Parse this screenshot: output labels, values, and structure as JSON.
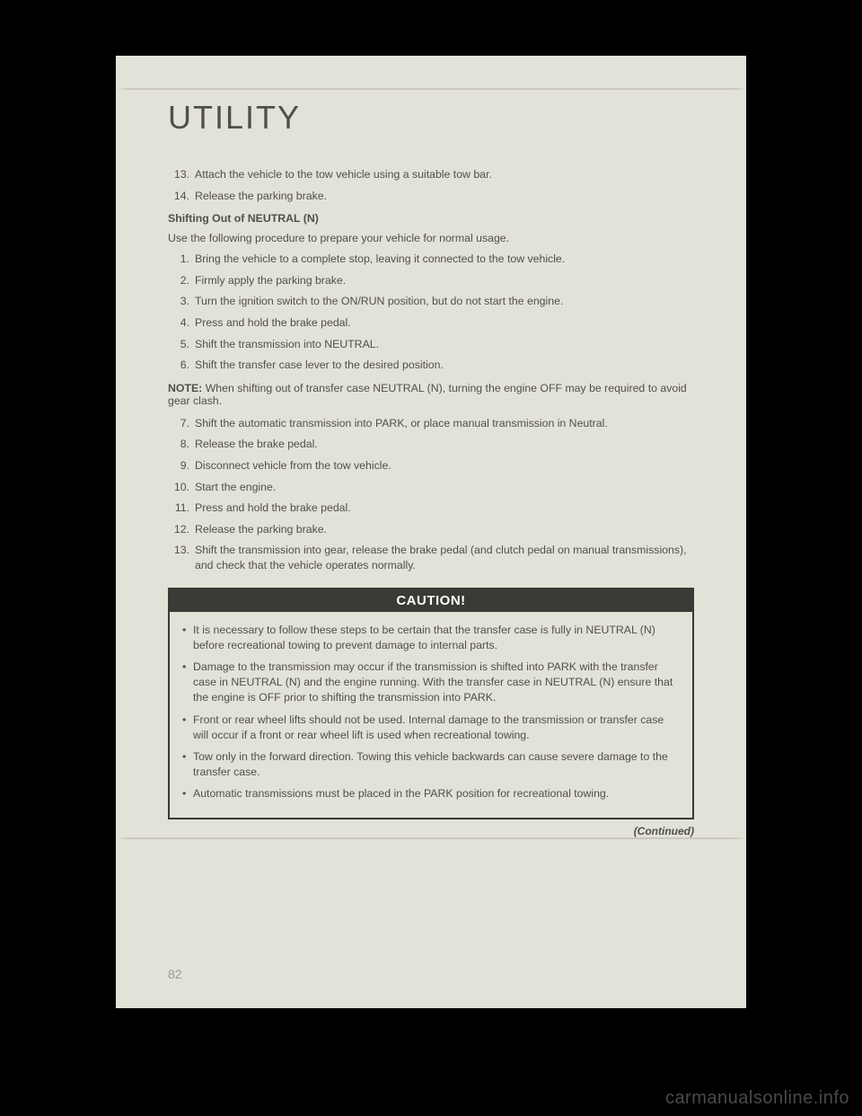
{
  "section_title": "UTILITY",
  "list_a": [
    {
      "n": "13.",
      "t": "Attach the vehicle to the tow vehicle using a suitable tow bar."
    },
    {
      "n": "14.",
      "t": "Release the parking brake."
    }
  ],
  "subheading": "Shifting Out of NEUTRAL (N)",
  "intro_para": "Use the following procedure to prepare your vehicle for normal usage.",
  "list_b": [
    {
      "n": "1.",
      "t": "Bring the vehicle to a complete stop, leaving it connected to the tow vehicle."
    },
    {
      "n": "2.",
      "t": "Firmly apply the parking brake."
    },
    {
      "n": "3.",
      "t": "Turn the ignition switch to the ON/RUN position, but do not start the engine."
    },
    {
      "n": "4.",
      "t": "Press and hold the brake pedal."
    },
    {
      "n": "5.",
      "t": "Shift the transmission into NEUTRAL."
    },
    {
      "n": "6.",
      "t": "Shift the transfer case lever to the desired position."
    }
  ],
  "note_label": "NOTE:",
  "note_text": "When shifting out of transfer case NEUTRAL (N), turning the engine OFF may be required to avoid gear clash.",
  "list_c": [
    {
      "n": "7.",
      "t": "Shift the automatic transmission into PARK, or place manual transmission in Neutral."
    },
    {
      "n": "8.",
      "t": "Release the brake pedal."
    },
    {
      "n": "9.",
      "t": "Disconnect vehicle from the tow vehicle."
    },
    {
      "n": "10.",
      "t": "Start the engine."
    },
    {
      "n": "11.",
      "t": "Press and hold the brake pedal."
    },
    {
      "n": "12.",
      "t": "Release the parking brake."
    },
    {
      "n": "13.",
      "t": "Shift the transmission into gear, release the brake pedal (and clutch pedal on manual transmissions), and check that the vehicle operates normally."
    }
  ],
  "caution_title": "CAUTION!",
  "caution_items": [
    "It is necessary to follow these steps to be certain that the transfer case is fully in NEUTRAL (N) before recreational towing to prevent damage to internal parts.",
    "Damage to the transmission may occur if the transmission is shifted into PARK with the transfer case in NEUTRAL (N) and the engine running. With the transfer case in NEUTRAL (N) ensure that the engine is OFF prior to shifting the transmission into PARK.",
    "Front or rear wheel lifts should not be used. Internal damage to the transmission or transfer case will occur if a front or rear wheel lift is used when recreational towing.",
    "Tow only in the forward direction. Towing this vehicle backwards can cause severe damage to the transfer case.",
    "Automatic transmissions must be placed in the PARK position for recreational towing."
  ],
  "continued": "(Continued)",
  "page_number": "82",
  "watermark": "carmanualsonline.info"
}
